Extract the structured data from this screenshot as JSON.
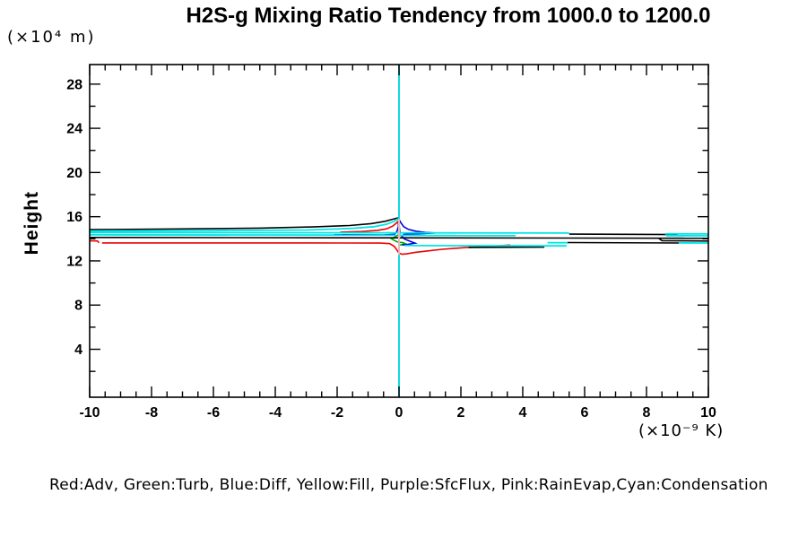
{
  "title": "H2S-g Mixing Ratio Tendency from 1000.0 to 1200.0",
  "y_axis_title": "Height",
  "y_axis_units": "(×10⁴ m)",
  "x_axis_units": "(×10⁻⁹ K)",
  "legend_text": "Red:Adv, Green:Turb, Blue:Diff, Yellow:Fill, Purple:SfcFlux, Pink:RainEvap,Cyan:Condensation",
  "colors": {
    "red": "#ee0000",
    "green": "#00aa00",
    "blue": "#0000dd",
    "yellow": "#d7d700",
    "purple": "#8c00c8",
    "pink": "#ffb4be",
    "cyan": "#00e6e6",
    "black": "#000000"
  },
  "chart_data": {
    "type": "line",
    "title": "H2S-g Mixing Ratio Tendency from 1000.0 to 1200.0",
    "xlabel": "(×10⁻⁹ K)",
    "ylabel": "Height (×10⁴ m)",
    "xlim": [
      -10,
      10
    ],
    "ylim": [
      -0.34,
      29.77
    ],
    "x_major_ticks": [
      -10,
      -8,
      -6,
      -4,
      -2,
      0,
      2,
      4,
      6,
      8,
      10
    ],
    "x_minor_step": 0.5,
    "y_major_ticks": [
      4,
      8,
      12,
      16,
      20,
      24,
      28
    ],
    "y_minor_ticks": [
      2,
      6,
      10,
      14,
      18,
      22,
      26
    ],
    "grid": false,
    "legend_position": "bottom",
    "zero_line_x": 0,
    "draw_order": [
      "Fill",
      "SfcFlux",
      "Adv",
      "Turb",
      "Diff",
      "Total",
      "Condensation",
      "RainEvap"
    ],
    "series": [
      {
        "name": "Adv",
        "color_name": "Red",
        "color": "#ee0000",
        "width": 1.6,
        "segments": [
          [
            [
              -1.9,
              14.6
            ],
            [
              -1.2,
              14.66
            ],
            [
              -0.7,
              14.76
            ],
            [
              -0.4,
              14.9
            ],
            [
              -0.2,
              15.15
            ],
            [
              -0.1,
              15.4
            ],
            [
              -0.04,
              15.55
            ],
            [
              0.0,
              15.1
            ],
            [
              0.02,
              14.5
            ]
          ],
          [
            [
              -10.1,
              13.82
            ],
            [
              -9.75,
              13.81
            ],
            [
              -9.7,
              13.64
            ]
          ],
          [
            [
              -9.6,
              13.63
            ],
            [
              -3.0,
              13.63
            ],
            [
              -0.6,
              13.61
            ],
            [
              -0.3,
              13.56
            ],
            [
              -0.15,
              13.3
            ],
            [
              -0.06,
              12.95
            ],
            [
              0.0,
              12.7
            ],
            [
              0.1,
              12.6
            ],
            [
              0.25,
              12.64
            ],
            [
              0.5,
              12.76
            ],
            [
              0.9,
              12.9
            ],
            [
              1.4,
              13.05
            ],
            [
              2.1,
              13.2
            ],
            [
              2.9,
              13.32
            ],
            [
              3.6,
              13.43
            ]
          ]
        ]
      },
      {
        "name": "Turb",
        "color_name": "Green",
        "color": "#00aa00",
        "width": 1.6,
        "segments": [
          [
            [
              0.0,
              14.38
            ],
            [
              -0.1,
              14.22
            ],
            [
              -0.24,
              14.0
            ],
            [
              -0.15,
              13.85
            ],
            [
              -0.04,
              13.7
            ],
            [
              0.12,
              13.66
            ],
            [
              0.2,
              13.56
            ],
            [
              0.06,
              13.46
            ],
            [
              0.0,
              13.42
            ]
          ]
        ]
      },
      {
        "name": "Diff",
        "color_name": "Blue",
        "color": "#0000dd",
        "width": 1.6,
        "segments": [
          [
            [
              -2.1,
              14.37
            ],
            [
              -0.5,
              14.35
            ],
            [
              -0.15,
              14.4
            ],
            [
              -0.07,
              14.65
            ],
            [
              -0.02,
              15.1
            ],
            [
              0.0,
              15.75
            ],
            [
              0.06,
              15.45
            ],
            [
              0.15,
              15.1
            ],
            [
              0.3,
              14.85
            ],
            [
              0.55,
              14.68
            ],
            [
              0.85,
              14.58
            ],
            [
              1.15,
              14.53
            ],
            [
              0.8,
              14.48
            ],
            [
              0.4,
              14.44
            ],
            [
              0.15,
              14.39
            ],
            [
              0.1,
              14.2
            ],
            [
              0.18,
              13.98
            ],
            [
              0.38,
              13.75
            ],
            [
              0.52,
              13.6
            ],
            [
              0.28,
              13.5
            ],
            [
              0.1,
              13.43
            ]
          ]
        ]
      },
      {
        "name": "Fill",
        "color_name": "Yellow",
        "color": "#d7d700",
        "width": 1.6,
        "segments": [
          [
            [
              0,
              29.77
            ],
            [
              0,
              -0.34
            ]
          ]
        ]
      },
      {
        "name": "SfcFlux",
        "color_name": "Purple",
        "color": "#8c00c8",
        "width": 1.6,
        "segments": [
          [
            [
              0,
              29.77
            ],
            [
              0,
              -0.34
            ]
          ]
        ]
      },
      {
        "name": "RainEvap",
        "color_name": "Pink",
        "color": "#ffb4be",
        "width": 1.8,
        "segments": [
          [
            [
              0.0,
              15.8
            ],
            [
              0.0,
              12.55
            ]
          ]
        ]
      },
      {
        "name": "Condensation",
        "color_name": "Cyan",
        "color": "#00e6e6",
        "width": 1.8,
        "segments": [
          [
            [
              0,
              29.77
            ],
            [
              0,
              -0.34
            ]
          ],
          [
            [
              -10.1,
              14.7
            ],
            [
              -6.0,
              14.74
            ],
            [
              -3.0,
              14.8
            ],
            [
              -1.5,
              14.94
            ],
            [
              -0.8,
              15.1
            ],
            [
              -0.4,
              15.32
            ],
            [
              -0.18,
              15.55
            ],
            [
              -0.07,
              15.75
            ],
            [
              -0.02,
              15.8
            ],
            [
              0.0,
              15.3
            ],
            [
              0.01,
              14.8
            ]
          ],
          [
            [
              -10.1,
              14.57
            ],
            [
              5.5,
              14.52
            ]
          ],
          [
            [
              8.6,
              14.45
            ],
            [
              10.1,
              14.44
            ]
          ],
          [
            [
              -10.1,
              14.36
            ],
            [
              -0.1,
              14.33
            ]
          ],
          [
            [
              0.0,
              14.31
            ],
            [
              3.77,
              14.29
            ]
          ],
          [
            [
              8.64,
              14.28
            ],
            [
              10.1,
              14.27
            ]
          ],
          [
            [
              0.18,
              13.38
            ],
            [
              5.42,
              13.36
            ]
          ],
          [
            [
              4.8,
              13.65
            ],
            [
              5.45,
              13.64
            ]
          ],
          [
            [
              9.04,
              13.63
            ],
            [
              10.1,
              13.62
            ]
          ]
        ]
      },
      {
        "name": "Total",
        "color_name": "Black",
        "color": "#000000",
        "width": 1.6,
        "segments": [
          [
            [
              -10.1,
              14.83
            ],
            [
              -7.0,
              14.89
            ],
            [
              -4.5,
              14.97
            ],
            [
              -2.8,
              15.07
            ],
            [
              -1.6,
              15.2
            ],
            [
              -0.9,
              15.37
            ],
            [
              -0.45,
              15.58
            ],
            [
              -0.2,
              15.77
            ],
            [
              -0.07,
              15.87
            ],
            [
              -0.02,
              15.88
            ],
            [
              0.0,
              15.4
            ],
            [
              0.02,
              14.7
            ],
            [
              0.01,
              14.25
            ]
          ],
          [
            [
              -10.1,
              14.12
            ],
            [
              10.1,
              14.05
            ]
          ],
          [
            [
              5.5,
              14.42
            ],
            [
              9.0,
              14.38
            ]
          ],
          [
            [
              5.45,
              13.66
            ],
            [
              9.05,
              13.62
            ]
          ],
          [
            [
              2.25,
              13.22
            ],
            [
              4.7,
              13.25
            ]
          ],
          [
            [
              8.4,
              14.04
            ],
            [
              8.5,
              13.83
            ],
            [
              10.1,
              13.8
            ]
          ]
        ]
      }
    ]
  }
}
